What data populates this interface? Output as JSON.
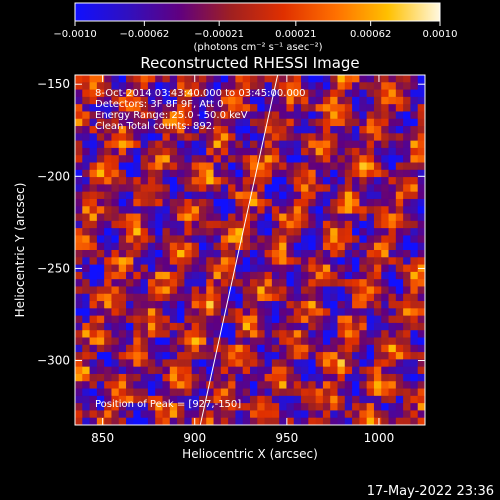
{
  "chart_data": {
    "type": "heatmap",
    "title": "Reconstructed RHESSI Image",
    "xlabel": "Heliocentric X (arcsec)",
    "ylabel": "Heliocentric Y (arcsec)",
    "xlim": [
      835,
      1025
    ],
    "ylim": [
      -335,
      -145
    ],
    "x_ticks": [
      850,
      900,
      950,
      1000
    ],
    "y_ticks": [
      -150,
      -200,
      -250,
      -300
    ],
    "x_tick_labels": [
      "850",
      "900",
      "950",
      "1000"
    ],
    "y_tick_labels": [
      "−150",
      "−200",
      "−250",
      "−300"
    ],
    "colorbar": {
      "range": [
        -0.001,
        0.001
      ],
      "ticks": [
        -0.001,
        -0.00062,
        -0.00021,
        0.00021,
        0.00062,
        0.001
      ],
      "tick_labels": [
        "−0.0010",
        "−0.00062",
        "−0.00021",
        "0.00021",
        "0.00062",
        "0.0010"
      ],
      "units": "(photons cm⁻² s⁻¹ asec⁻²)",
      "colormap": [
        "#1010ff",
        "#3010c0",
        "#600080",
        "#a02020",
        "#e03000",
        "#ff7000",
        "#ffc000",
        "#fff8e0"
      ]
    },
    "annotations": [
      "8-Oct-2014 03:43:40.000 to 03:45:00.000",
      "Detectors: 3F 8F 9F, Att 0",
      "Energy Range: 25.0 - 50.0 keV",
      "Clean    Total counts: 892."
    ],
    "peak_label": "Position of Peak = [927,-150]",
    "limb_line": [
      [
        903,
        -335
      ],
      [
        945,
        -145
      ]
    ],
    "timestamp": "17-May-2022 23:36"
  }
}
